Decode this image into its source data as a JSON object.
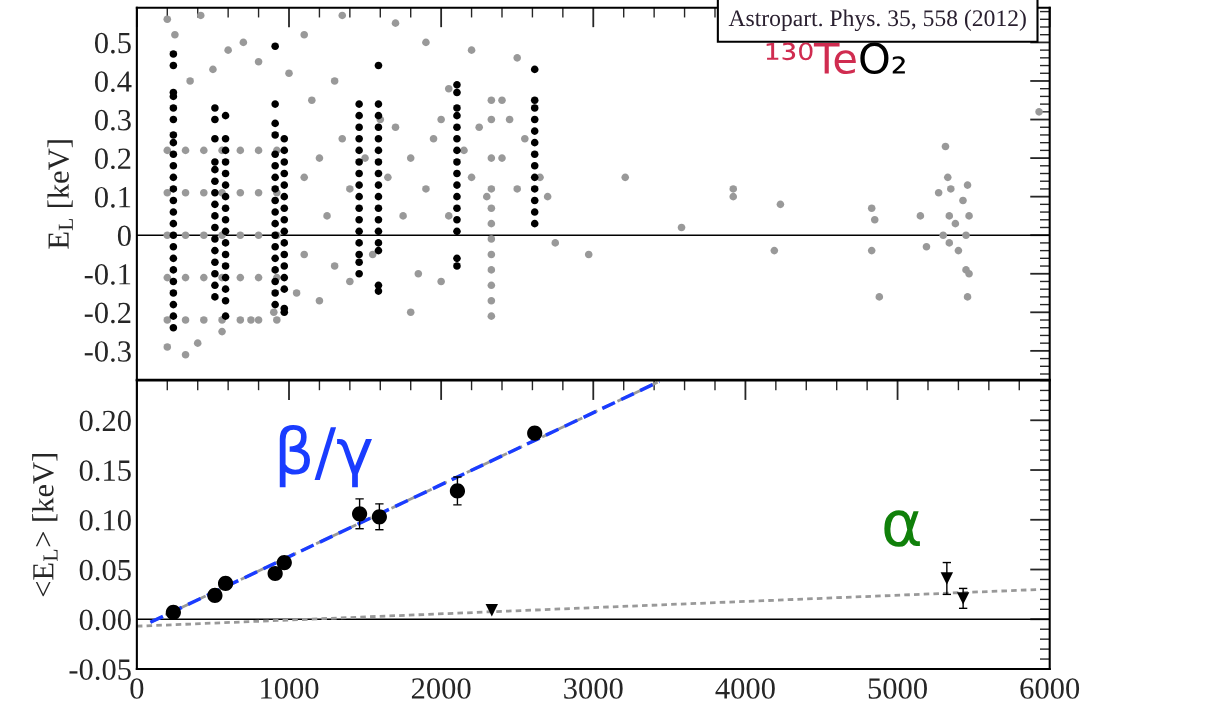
{
  "chart_data": [
    {
      "type": "scatter",
      "ylabel": "E$_{L}$ [keV]",
      "xlim": [
        0,
        6000
      ],
      "xticks": [
        0,
        1000,
        2000,
        3000,
        4000,
        5000,
        6000
      ],
      "ylim": [
        -0.375,
        0.59
      ],
      "yticks": [
        {
          "value": -0.3,
          "label": "-0.3"
        },
        {
          "value": -0.2,
          "label": "-0.2"
        },
        {
          "value": -0.1,
          "label": "-0.1"
        },
        0,
        0.1,
        0.2,
        0.3,
        0.4,
        0.5
      ],
      "tick_labels": "y",
      "grid": false,
      "legend": false,
      "ref_lines": [
        {
          "axis": "y",
          "value": 0,
          "color": "#000000"
        }
      ],
      "annotations": [
        "Astropart. Phys. 35, 558 (2012)",
        "¹³⁰Te",
        "O₂"
      ],
      "series": [
        {
          "color": "#999999",
          "marker": "circle",
          "x": [
            200,
            200,
            200,
            200,
            200,
            320,
            320,
            320,
            320,
            320,
            440,
            440,
            440,
            440,
            440,
            560,
            560,
            560,
            560,
            560,
            680,
            680,
            680,
            680,
            680,
            800,
            800,
            800,
            800,
            800,
            920,
            920,
            920,
            920,
            920,
            1100,
            1100,
            1200,
            1250,
            1300,
            1350,
            1400,
            1500,
            1550,
            1650,
            1700,
            1750,
            1800,
            1850,
            1900,
            1950,
            2000,
            2050,
            2150,
            2200,
            2250,
            2300,
            2400,
            2450,
            2500,
            2550,
            2650,
            2700,
            1150,
            1300,
            1600,
            2050,
            2400,
            200,
            250,
            420,
            600,
            700,
            800,
            1100,
            1350,
            1700,
            1900,
            2200,
            2500,
            350,
            500,
            1000,
            200,
            320,
            560,
            750,
            900,
            1050,
            1200,
            1800,
            2000,
            400,
            1400,
            2330,
            2330,
            2330,
            2330,
            2330,
            2330,
            2330,
            2330,
            2330,
            2330,
            2330,
            2330,
            2750,
            2970,
            3210,
            3580,
            3920,
            3920,
            4230,
            4190,
            4830,
            4850,
            4830,
            4880,
            5150,
            5190,
            5270,
            5300,
            5330,
            5340,
            5340,
            5350,
            5380,
            5400,
            5430,
            5450,
            5450,
            5460,
            5460,
            5470,
            5470,
            5930,
            5315
          ],
          "values": [
            -0.22,
            -0.11,
            0,
            0.11,
            0.22,
            -0.22,
            -0.11,
            0,
            0.11,
            0.22,
            -0.22,
            -0.11,
            0,
            0.11,
            0.22,
            -0.22,
            -0.11,
            0,
            0.11,
            0.22,
            -0.22,
            -0.11,
            0,
            0.11,
            0.22,
            -0.22,
            -0.11,
            0,
            0.11,
            0.22,
            -0.22,
            -0.11,
            0,
            0.11,
            0.22,
            0.15,
            -0.05,
            0.2,
            0.05,
            -0.08,
            0.25,
            0.12,
            0.2,
            -0.05,
            0.15,
            0.28,
            0.05,
            0.2,
            -0.1,
            0.12,
            0.25,
            0.3,
            0.05,
            0.22,
            0.15,
            0.28,
            0.1,
            0.2,
            0.3,
            0.12,
            0.25,
            0.15,
            0.1,
            0.35,
            0.4,
            0.3,
            0.38,
            0.35,
            0.56,
            0.52,
            0.57,
            0.48,
            0.5,
            0.45,
            0.52,
            0.57,
            0.55,
            0.5,
            0.48,
            0.46,
            0.4,
            0.43,
            0.42,
            -0.29,
            -0.31,
            -0.25,
            -0.22,
            -0.2,
            -0.15,
            -0.17,
            -0.2,
            -0.12,
            -0.28,
            -0.12,
            -0.21,
            -0.17,
            -0.13,
            -0.09,
            -0.05,
            -0.01,
            0.03,
            0.07,
            0.12,
            0.2,
            0.3,
            0.35,
            -0.02,
            -0.05,
            0.15,
            0.02,
            0.12,
            0.1,
            0.08,
            -0.04,
            0.07,
            0.04,
            -0.04,
            -0.16,
            0.05,
            -0.03,
            0.11,
            0,
            0.15,
            0.05,
            -0.02,
            0.12,
            0.03,
            -0.04,
            0.09,
            0,
            -0.09,
            0.13,
            -0.16,
            0.05,
            -0.1,
            0.32,
            0.23
          ]
        },
        {
          "color": "#000000",
          "marker": "circle",
          "x": [
            240,
            240,
            240,
            240,
            240,
            240,
            240,
            240,
            240,
            240,
            240,
            240,
            240,
            240,
            240,
            240,
            240,
            240,
            240,
            240,
            240,
            240,
            240,
            240,
            513,
            513,
            513,
            513,
            513,
            513,
            513,
            513,
            513,
            513,
            513,
            513,
            513,
            513,
            513,
            513,
            583,
            583,
            583,
            583,
            583,
            583,
            583,
            583,
            583,
            583,
            583,
            583,
            583,
            583,
            583,
            583,
            583,
            909,
            909,
            909,
            909,
            909,
            909,
            909,
            909,
            909,
            909,
            909,
            909,
            909,
            909,
            909,
            909,
            909,
            909,
            969,
            969,
            969,
            969,
            969,
            969,
            969,
            969,
            969,
            969,
            969,
            969,
            969,
            969,
            969,
            969,
            1461,
            1461,
            1461,
            1461,
            1461,
            1461,
            1461,
            1461,
            1461,
            1461,
            1461,
            1461,
            1461,
            1461,
            1461,
            1461,
            1588,
            1588,
            1588,
            1588,
            1588,
            1588,
            1588,
            1588,
            1588,
            1588,
            1588,
            1588,
            1588,
            1588,
            1588,
            1588,
            1588,
            2104,
            2104,
            2104,
            2104,
            2104,
            2104,
            2104,
            2104,
            2104,
            2104,
            2104,
            2104,
            2104,
            2104,
            2104,
            2104,
            2615,
            2615,
            2615,
            2615,
            2615,
            2615,
            2615,
            2615,
            2615,
            2615,
            2615,
            2615,
            2615
          ],
          "values": [
            -0.24,
            -0.21,
            -0.18,
            -0.15,
            -0.12,
            -0.09,
            -0.06,
            -0.03,
            0,
            0.03,
            0.06,
            0.09,
            0.12,
            0.15,
            0.18,
            0.21,
            0.24,
            0.26,
            0.3,
            0.33,
            0.36,
            0.37,
            0.44,
            0.47,
            -0.16,
            -0.13,
            -0.1,
            -0.07,
            -0.04,
            -0.01,
            0.02,
            0.05,
            0.08,
            0.11,
            0.14,
            0.17,
            0.19,
            0.25,
            0.3,
            0.33,
            -0.21,
            -0.17,
            -0.14,
            -0.11,
            -0.08,
            -0.05,
            -0.02,
            0.01,
            0.04,
            0.07,
            0.1,
            0.13,
            0.16,
            0.19,
            0.22,
            0.25,
            0.31,
            -0.18,
            -0.15,
            -0.12,
            -0.09,
            -0.06,
            -0.03,
            0,
            0.03,
            0.06,
            0.09,
            0.12,
            0.15,
            0.18,
            0.21,
            0.26,
            0.29,
            0.34,
            0.49,
            -0.2,
            -0.19,
            -0.14,
            -0.11,
            -0.08,
            -0.05,
            -0.02,
            0.01,
            0.04,
            0.07,
            0.1,
            0.13,
            0.16,
            0.19,
            0.22,
            0.25,
            -0.1,
            -0.07,
            -0.05,
            -0.02,
            0.01,
            0.04,
            0.07,
            0.1,
            0.13,
            0.16,
            0.19,
            0.22,
            0.25,
            0.28,
            0.31,
            0.34,
            -0.145,
            -0.13,
            -0.04,
            -0.02,
            0.01,
            0.04,
            0.07,
            0.1,
            0.13,
            0.16,
            0.19,
            0.22,
            0.25,
            0.28,
            0.31,
            0.34,
            0.44,
            -0.08,
            -0.06,
            0.01,
            0.04,
            0.07,
            0.1,
            0.13,
            0.16,
            0.19,
            0.22,
            0.25,
            0.28,
            0.31,
            0.33,
            0.37,
            0.39,
            0.03,
            0.06,
            0.09,
            0.12,
            0.15,
            0.18,
            0.21,
            0.24,
            0.27,
            0.3,
            0.33,
            0.35,
            0.43
          ]
        }
      ]
    },
    {
      "type": "scatter",
      "ylabel": "<E$_{L}$> [keV]",
      "xlim": [
        0,
        6000
      ],
      "xticks": [
        0,
        1000,
        2000,
        3000,
        4000,
        5000,
        6000
      ],
      "ylim": [
        -0.05,
        0.24
      ],
      "yticks": [
        {
          "value": -0.05,
          "label": "-0.05"
        },
        {
          "value": 0,
          "label": "0.00"
        },
        {
          "value": 0.05,
          "label": "0.05"
        },
        {
          "value": 0.1,
          "label": "0.10"
        },
        {
          "value": 0.15,
          "label": "0.15"
        },
        {
          "value": 0.2,
          "label": "0.20"
        }
      ],
      "grid": false,
      "legend": false,
      "ref_lines": [
        {
          "axis": "y",
          "value": 0,
          "color": "#000000"
        }
      ],
      "annotations": [
        "β/γ",
        "α"
      ],
      "series": [
        {
          "type": "line",
          "color": "#999999",
          "line_style": "dashed",
          "marker": "none",
          "x": [
            89,
            3434
          ],
          "values": [
            -0.003,
            0.239
          ]
        },
        {
          "type": "line",
          "color": "#1a3cff",
          "line_style": "dashed",
          "marker": "none",
          "x": [
            89,
            3434
          ],
          "values": [
            -0.003,
            0.239
          ]
        },
        {
          "type": "line",
          "color": "#999999",
          "line_style": "dotted",
          "marker": "none",
          "x": [
            0,
            5940
          ],
          "values": [
            -0.007,
            0.03
          ]
        },
        {
          "color": "#000000",
          "marker": "circle",
          "x": [
            240,
            513,
            583,
            909,
            969,
            1464,
            1594,
            2107,
            2615
          ],
          "values": [
            0.007,
            0.024,
            0.036,
            0.046,
            0.057,
            0.106,
            0.103,
            0.129,
            0.187
          ],
          "errors": [
            null,
            null,
            null,
            null,
            null,
            0.015,
            0.013,
            0.014,
            null
          ]
        },
        {
          "color": "#000000",
          "marker": "triangle",
          "x": [
            2333,
            5324,
            5431
          ],
          "values": [
            0.009,
            0.041,
            0.021
          ],
          "errors": [
            null,
            0.016,
            0.01
          ]
        }
      ]
    }
  ]
}
